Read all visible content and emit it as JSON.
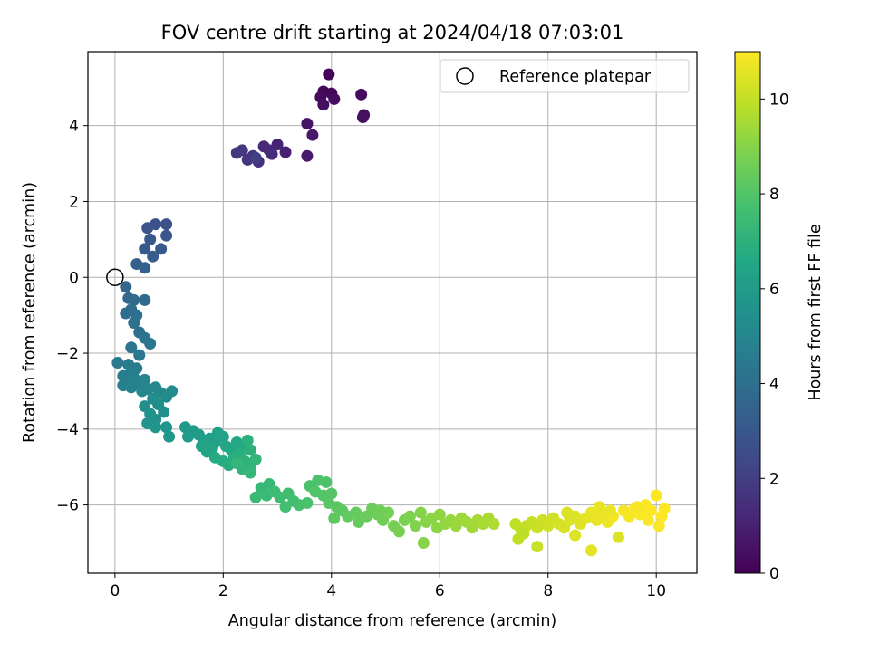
{
  "chart_data": {
    "type": "scatter",
    "title": "FOV centre drift starting at 2024/04/18 07:03:01",
    "xlabel": "Angular distance from reference (arcmin)",
    "ylabel": "Rotation from reference (arcmin)",
    "xlim": [
      -0.5,
      10.75
    ],
    "ylim": [
      -7.8,
      5.95
    ],
    "xticks": [
      0,
      2,
      4,
      6,
      8,
      10
    ],
    "yticks": [
      -6,
      -4,
      -2,
      0,
      2,
      4
    ],
    "grid": true,
    "colormap": "viridis",
    "colorbar": {
      "label": "Hours from first FF file",
      "range": [
        0,
        11
      ],
      "ticks": [
        0,
        2,
        4,
        6,
        8,
        10
      ]
    },
    "reference_point": {
      "x": 0,
      "y": 0,
      "label": "Reference platepar"
    },
    "legend": {
      "position": "top-right",
      "entries": [
        "Reference platepar"
      ]
    },
    "points": [
      [
        3.95,
        5.35,
        0.1
      ],
      [
        3.85,
        4.9,
        0.15
      ],
      [
        4.0,
        4.85,
        0.2
      ],
      [
        3.8,
        4.75,
        0.3
      ],
      [
        4.05,
        4.7,
        0.35
      ],
      [
        3.85,
        4.55,
        0.4
      ],
      [
        4.55,
        4.82,
        0.3
      ],
      [
        4.6,
        4.28,
        0.45
      ],
      [
        4.58,
        4.22,
        0.5
      ],
      [
        3.55,
        4.05,
        0.6
      ],
      [
        3.65,
        3.75,
        0.7
      ],
      [
        3.55,
        3.2,
        0.8
      ],
      [
        3.15,
        3.3,
        1.0
      ],
      [
        3.0,
        3.5,
        1.1
      ],
      [
        2.85,
        3.35,
        1.2
      ],
      [
        2.75,
        3.45,
        1.3
      ],
      [
        2.9,
        3.25,
        1.4
      ],
      [
        2.65,
        3.05,
        1.5
      ],
      [
        2.55,
        3.2,
        1.6
      ],
      [
        2.45,
        3.1,
        1.7
      ],
      [
        2.35,
        3.35,
        1.8
      ],
      [
        2.25,
        3.28,
        1.9
      ],
      [
        2.6,
        3.15,
        2.0
      ],
      [
        0.75,
        1.4,
        2.7
      ],
      [
        0.95,
        1.4,
        2.75
      ],
      [
        0.6,
        1.3,
        2.8
      ],
      [
        0.95,
        1.1,
        2.9
      ],
      [
        0.65,
        1.0,
        3.0
      ],
      [
        0.85,
        0.75,
        3.05
      ],
      [
        0.55,
        0.75,
        3.1
      ],
      [
        0.7,
        0.55,
        3.2
      ],
      [
        0.4,
        0.35,
        3.3
      ],
      [
        0.55,
        0.25,
        3.35
      ],
      [
        0.2,
        -0.25,
        3.6
      ],
      [
        0.25,
        -0.55,
        3.7
      ],
      [
        0.35,
        -0.6,
        3.75
      ],
      [
        0.55,
        -0.6,
        3.8
      ],
      [
        0.3,
        -0.85,
        3.85
      ],
      [
        0.2,
        -0.95,
        3.9
      ],
      [
        0.4,
        -1.0,
        4.0
      ],
      [
        0.35,
        -1.2,
        4.05
      ],
      [
        0.45,
        -1.45,
        4.1
      ],
      [
        0.55,
        -1.6,
        4.2
      ],
      [
        0.65,
        -1.75,
        4.25
      ],
      [
        0.3,
        -1.85,
        4.3
      ],
      [
        0.45,
        -2.05,
        4.35
      ],
      [
        0.05,
        -2.25,
        4.45
      ],
      [
        0.25,
        -2.3,
        4.5
      ],
      [
        0.4,
        -2.4,
        4.55
      ],
      [
        0.3,
        -2.5,
        4.6
      ],
      [
        0.15,
        -2.6,
        4.65
      ],
      [
        0.35,
        -2.65,
        4.7
      ],
      [
        0.25,
        -2.75,
        4.75
      ],
      [
        0.15,
        -2.85,
        4.8
      ],
      [
        0.3,
        -2.9,
        4.85
      ],
      [
        0.45,
        -2.8,
        4.9
      ],
      [
        0.55,
        -2.7,
        4.95
      ],
      [
        0.6,
        -2.95,
        5.0
      ],
      [
        0.5,
        -3.0,
        5.05
      ],
      [
        0.75,
        -2.9,
        5.1
      ],
      [
        0.85,
        -3.05,
        5.15
      ],
      [
        1.05,
        -3.0,
        5.2
      ],
      [
        0.95,
        -3.15,
        5.25
      ],
      [
        0.7,
        -3.2,
        5.3
      ],
      [
        0.8,
        -3.35,
        5.35
      ],
      [
        0.55,
        -3.4,
        5.4
      ],
      [
        0.9,
        -3.55,
        5.45
      ],
      [
        0.65,
        -3.6,
        5.5
      ],
      [
        0.75,
        -3.75,
        5.55
      ],
      [
        0.6,
        -3.85,
        5.6
      ],
      [
        0.75,
        -3.95,
        5.65
      ],
      [
        0.95,
        -3.95,
        5.7
      ],
      [
        1.0,
        -4.2,
        5.75
      ],
      [
        1.3,
        -3.95,
        5.9
      ],
      [
        1.45,
        -4.05,
        5.95
      ],
      [
        1.35,
        -4.2,
        6.0
      ],
      [
        1.55,
        -4.15,
        6.05
      ],
      [
        1.65,
        -4.3,
        6.1
      ],
      [
        1.75,
        -4.25,
        6.15
      ],
      [
        1.85,
        -4.35,
        6.2
      ],
      [
        1.9,
        -4.1,
        6.25
      ],
      [
        2.0,
        -4.2,
        6.3
      ],
      [
        1.6,
        -4.45,
        6.35
      ],
      [
        1.8,
        -4.5,
        6.4
      ],
      [
        1.7,
        -4.6,
        6.45
      ],
      [
        2.05,
        -4.45,
        6.5
      ],
      [
        2.15,
        -4.55,
        6.55
      ],
      [
        2.25,
        -4.35,
        6.6
      ],
      [
        2.35,
        -4.45,
        6.65
      ],
      [
        1.85,
        -4.75,
        6.7
      ],
      [
        2.0,
        -4.85,
        6.75
      ],
      [
        2.1,
        -4.95,
        6.8
      ],
      [
        2.2,
        -4.75,
        6.85
      ],
      [
        2.3,
        -4.65,
        6.9
      ],
      [
        2.45,
        -4.3,
        6.95
      ],
      [
        2.5,
        -4.55,
        7.0
      ],
      [
        2.4,
        -4.85,
        7.05
      ],
      [
        2.5,
        -5.0,
        7.1
      ],
      [
        2.35,
        -5.05,
        7.15
      ],
      [
        2.25,
        -4.9,
        7.2
      ],
      [
        2.6,
        -4.8,
        7.2
      ],
      [
        2.5,
        -5.15,
        7.25
      ],
      [
        2.7,
        -5.55,
        7.3
      ],
      [
        2.85,
        -5.45,
        7.35
      ],
      [
        2.6,
        -5.8,
        7.4
      ],
      [
        2.8,
        -5.75,
        7.45
      ],
      [
        2.95,
        -5.65,
        7.5
      ],
      [
        3.05,
        -5.8,
        7.55
      ],
      [
        3.2,
        -5.7,
        7.6
      ],
      [
        3.3,
        -5.9,
        7.65
      ],
      [
        3.15,
        -6.05,
        7.7
      ],
      [
        3.4,
        -6.0,
        7.75
      ],
      [
        3.55,
        -5.95,
        7.8
      ],
      [
        3.6,
        -5.5,
        7.8
      ],
      [
        3.75,
        -5.35,
        7.85
      ],
      [
        3.9,
        -5.4,
        7.9
      ],
      [
        3.7,
        -5.65,
        7.95
      ],
      [
        3.85,
        -5.75,
        8.0
      ],
      [
        4.0,
        -5.7,
        8.05
      ],
      [
        3.95,
        -5.95,
        8.1
      ],
      [
        4.1,
        -6.05,
        8.15
      ],
      [
        4.2,
        -6.15,
        8.2
      ],
      [
        4.05,
        -6.35,
        8.25
      ],
      [
        4.3,
        -6.3,
        8.3
      ],
      [
        4.45,
        -6.2,
        8.35
      ],
      [
        4.5,
        -6.45,
        8.4
      ],
      [
        4.65,
        -6.3,
        8.45
      ],
      [
        4.75,
        -6.1,
        8.5
      ],
      [
        4.85,
        -6.25,
        8.55
      ],
      [
        4.95,
        -6.4,
        8.6
      ],
      [
        5.05,
        -6.2,
        8.65
      ],
      [
        5.15,
        -6.55,
        8.7
      ],
      [
        5.25,
        -6.7,
        8.75
      ],
      [
        5.35,
        -6.4,
        8.8
      ],
      [
        5.45,
        -6.3,
        8.85
      ],
      [
        5.55,
        -6.55,
        8.9
      ],
      [
        5.65,
        -6.2,
        8.95
      ],
      [
        5.75,
        -6.45,
        9.0
      ],
      [
        5.85,
        -6.35,
        9.05
      ],
      [
        5.95,
        -6.6,
        9.1
      ],
      [
        6.0,
        -6.25,
        9.15
      ],
      [
        6.1,
        -6.5,
        9.2
      ],
      [
        6.2,
        -6.4,
        9.25
      ],
      [
        6.3,
        -6.55,
        9.3
      ],
      [
        6.4,
        -6.35,
        9.35
      ],
      [
        6.5,
        -6.45,
        9.4
      ],
      [
        6.6,
        -6.6,
        9.45
      ],
      [
        6.7,
        -6.4,
        9.5
      ],
      [
        6.8,
        -6.5,
        9.55
      ],
      [
        6.9,
        -6.35,
        9.6
      ],
      [
        7.0,
        -6.5,
        9.65
      ],
      [
        5.7,
        -7.0,
        9.0
      ],
      [
        4.9,
        -6.15,
        8.6
      ],
      [
        7.4,
        -6.5,
        9.9
      ],
      [
        7.5,
        -6.65,
        9.95
      ],
      [
        7.6,
        -6.55,
        10.0
      ],
      [
        7.7,
        -6.45,
        10.05
      ],
      [
        7.8,
        -6.6,
        10.1
      ],
      [
        7.9,
        -6.4,
        10.15
      ],
      [
        8.0,
        -6.55,
        10.2
      ],
      [
        8.1,
        -6.35,
        10.25
      ],
      [
        8.2,
        -6.5,
        10.3
      ],
      [
        8.3,
        -6.6,
        10.35
      ],
      [
        8.4,
        -6.4,
        10.4
      ],
      [
        8.5,
        -6.3,
        10.45
      ],
      [
        8.6,
        -6.5,
        10.5
      ],
      [
        8.7,
        -6.35,
        10.55
      ],
      [
        8.8,
        -6.2,
        10.6
      ],
      [
        8.9,
        -6.4,
        10.65
      ],
      [
        9.0,
        -6.25,
        10.7
      ],
      [
        9.1,
        -6.45,
        10.75
      ],
      [
        9.2,
        -6.3,
        10.8
      ],
      [
        9.3,
        -6.85,
        10.4
      ],
      [
        9.4,
        -6.15,
        10.85
      ],
      [
        9.5,
        -6.3,
        10.9
      ],
      [
        9.6,
        -6.1,
        10.95
      ],
      [
        9.7,
        -6.25,
        10.95
      ],
      [
        9.8,
        -6.0,
        11.0
      ],
      [
        9.9,
        -6.15,
        11.0
      ],
      [
        10.0,
        -5.75,
        11.0
      ],
      [
        10.05,
        -6.55,
        10.95
      ],
      [
        10.1,
        -6.3,
        11.0
      ],
      [
        10.15,
        -6.1,
        11.0
      ],
      [
        7.8,
        -7.1,
        10.1
      ],
      [
        8.8,
        -7.2,
        10.55
      ],
      [
        7.45,
        -6.9,
        9.95
      ],
      [
        8.5,
        -6.8,
        10.45
      ],
      [
        7.55,
        -6.75,
        9.9
      ],
      [
        9.65,
        -6.05,
        10.9
      ],
      [
        9.85,
        -6.4,
        10.95
      ],
      [
        8.95,
        -6.05,
        10.6
      ],
      [
        9.15,
        -6.15,
        10.7
      ],
      [
        8.35,
        -6.2,
        10.4
      ]
    ]
  }
}
